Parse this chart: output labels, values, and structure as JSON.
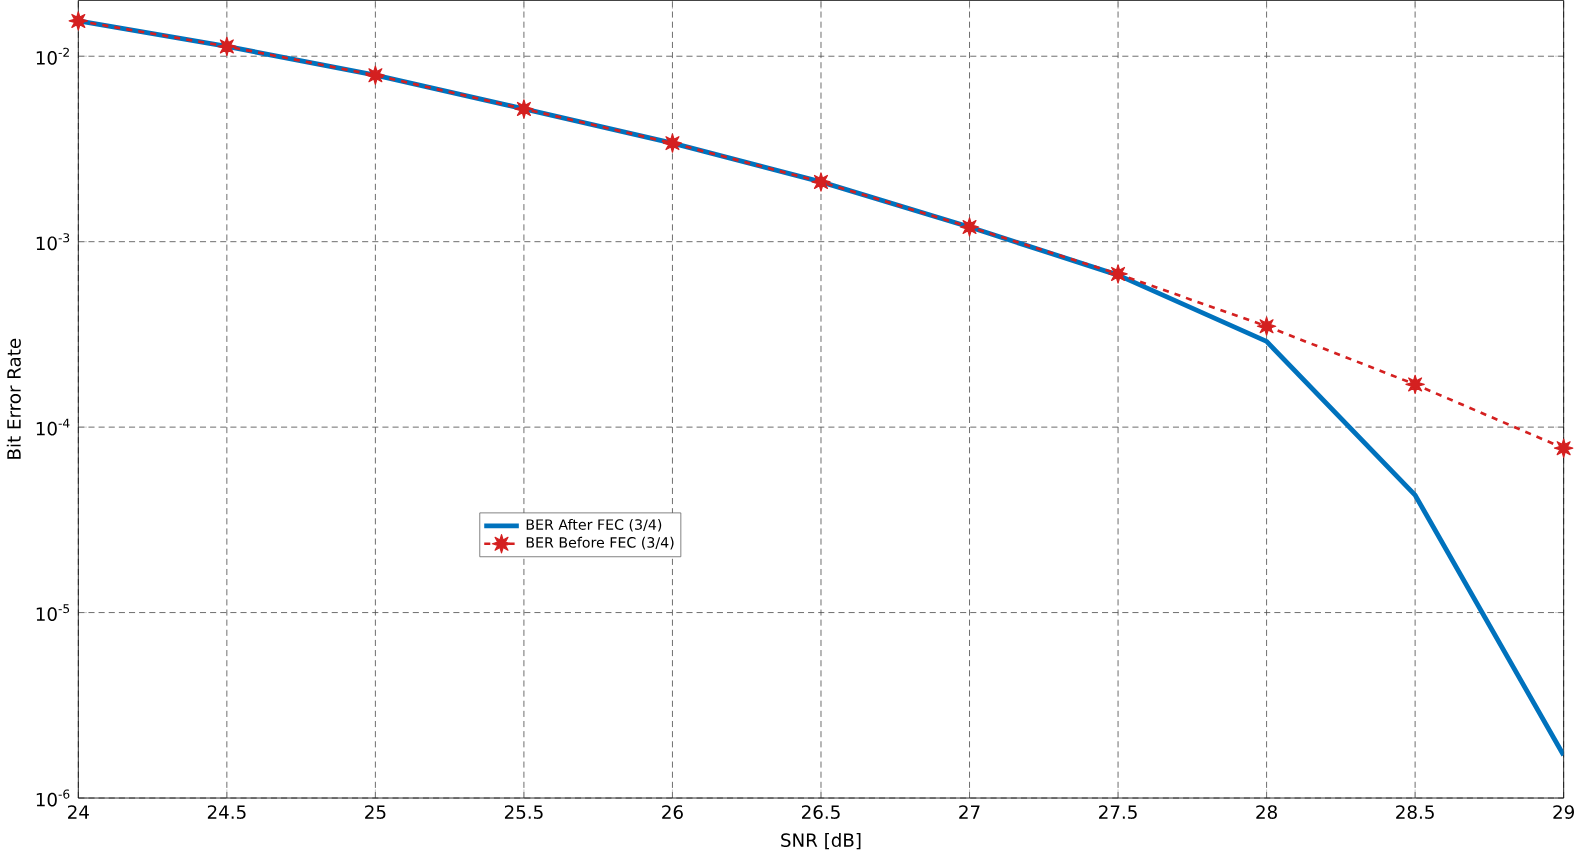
{
  "chart_data": {
    "type": "line",
    "xlabel": "SNR [dB]",
    "ylabel": "Bit Error Rate",
    "log": "y",
    "grid": true,
    "legend": "left",
    "x": [
      24,
      24.5,
      25,
      25.5,
      26,
      26.5,
      27,
      27.5,
      28,
      28.5,
      29
    ],
    "xlim": [
      24,
      29
    ],
    "xticks": [
      24,
      24.5,
      25,
      25.5,
      26,
      26.5,
      27,
      27.5,
      28,
      28.5,
      29
    ],
    "ylim": [
      1e-06,
      0.02
    ],
    "yticks": [
      {
        "value": 1e-06,
        "label": "10$^{-6}$"
      },
      {
        "value": 1e-05,
        "label": "10$^{-5}$"
      },
      {
        "value": 0.0001,
        "label": "10$^{-4}$"
      },
      {
        "value": 0.001,
        "label": "10$^{-3}$"
      },
      {
        "value": 0.01,
        "label": "10$^{-2}$"
      }
    ],
    "series": [
      {
        "name": "BER After FEC (3/4)",
        "color": "#0072bd",
        "line_style": "solid",
        "marker": "none",
        "values": [
          0.0155,
          0.0113,
          0.0079,
          0.0052,
          0.0034,
          0.0021,
          0.0012,
          0.00066,
          0.00029,
          4.3e-05,
          1.7e-06
        ]
      },
      {
        "name": "BER Before FEC (3/4)",
        "color": "#d42020",
        "line_style": "dashed",
        "marker": "star",
        "values": [
          0.0155,
          0.0113,
          0.0079,
          0.0052,
          0.0034,
          0.0021,
          0.0012,
          0.00067,
          0.00035,
          0.00017,
          7.7e-05
        ]
      }
    ]
  }
}
